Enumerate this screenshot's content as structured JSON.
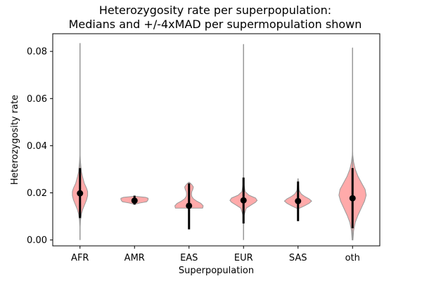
{
  "chart_data": {
    "type": "violin",
    "title": [
      "Heterozygosity rate per superpopulation:",
      "Medians and +/-4xMAD per supermopulation shown"
    ],
    "xlabel": "Superpopulation",
    "ylabel": "Heterozygosity rate",
    "categories": [
      "AFR",
      "AMR",
      "EAS",
      "EUR",
      "SAS",
      "oth"
    ],
    "ylim": [
      -0.0025,
      0.0875
    ],
    "yticks": [
      0.0,
      0.02,
      0.04,
      0.06,
      0.08
    ],
    "ytick_labels": [
      "0.00",
      "0.02",
      "0.04",
      "0.06",
      "0.08"
    ],
    "violin_color": "#ffaaaa",
    "violin_edge_color": "#999999",
    "range_line_color": "#999999",
    "median_color": "#000000",
    "groups": [
      {
        "name": "AFR",
        "min": 0.0,
        "max": 0.0835,
        "median": 0.0198,
        "mad_low": 0.0093,
        "mad_high": 0.0305,
        "density": [
          [
            0.005,
            0.002
          ],
          [
            0.0085,
            0.01
          ],
          [
            0.011,
            0.025
          ],
          [
            0.013,
            0.05
          ],
          [
            0.015,
            0.085
          ],
          [
            0.017,
            0.12
          ],
          [
            0.0188,
            0.14
          ],
          [
            0.0205,
            0.14
          ],
          [
            0.022,
            0.12
          ],
          [
            0.024,
            0.08
          ],
          [
            0.0265,
            0.05
          ],
          [
            0.029,
            0.025
          ],
          [
            0.033,
            0.01
          ],
          [
            0.036,
            0.003
          ],
          [
            0.045,
            0.001
          ],
          [
            0.083,
            0.001
          ]
        ]
      },
      {
        "name": "AMR",
        "min": 0.0152,
        "max": 0.0185,
        "median": 0.0167,
        "mad_low": 0.015,
        "mad_high": 0.0188,
        "density": [
          [
            0.0152,
            0.01
          ],
          [
            0.0157,
            0.1
          ],
          [
            0.0162,
            0.22
          ],
          [
            0.0167,
            0.24
          ],
          [
            0.0172,
            0.25
          ],
          [
            0.0177,
            0.25
          ],
          [
            0.0181,
            0.2
          ],
          [
            0.0185,
            0.02
          ]
        ]
      },
      {
        "name": "EAS",
        "min": 0.0135,
        "max": 0.0245,
        "median": 0.0145,
        "mad_low": 0.0045,
        "mad_high": 0.024,
        "density": [
          [
            0.0135,
            0.25
          ],
          [
            0.0145,
            0.26
          ],
          [
            0.0155,
            0.22
          ],
          [
            0.0165,
            0.14
          ],
          [
            0.0175,
            0.08
          ],
          [
            0.0185,
            0.05
          ],
          [
            0.0195,
            0.045
          ],
          [
            0.0205,
            0.05
          ],
          [
            0.0215,
            0.07
          ],
          [
            0.0225,
            0.08
          ],
          [
            0.0235,
            0.05
          ],
          [
            0.0245,
            0.005
          ]
        ]
      },
      {
        "name": "EUR",
        "min": 0.0,
        "max": 0.083,
        "median": 0.0168,
        "mad_low": 0.007,
        "mad_high": 0.0265,
        "density": [
          [
            0.01,
            0.002
          ],
          [
            0.0135,
            0.05
          ],
          [
            0.015,
            0.15
          ],
          [
            0.016,
            0.22
          ],
          [
            0.0168,
            0.25
          ],
          [
            0.0178,
            0.22
          ],
          [
            0.019,
            0.1
          ],
          [
            0.0205,
            0.03
          ],
          [
            0.024,
            0.005
          ],
          [
            0.03,
            0.001
          ],
          [
            0.083,
            0.001
          ]
        ]
      },
      {
        "name": "SAS",
        "min": 0.0135,
        "max": 0.026,
        "median": 0.0165,
        "mad_low": 0.008,
        "mad_high": 0.0248,
        "density": [
          [
            0.0135,
            0.03
          ],
          [
            0.0145,
            0.12
          ],
          [
            0.0155,
            0.2
          ],
          [
            0.0165,
            0.25
          ],
          [
            0.0175,
            0.2
          ],
          [
            0.0185,
            0.12
          ],
          [
            0.0195,
            0.06
          ],
          [
            0.021,
            0.02
          ],
          [
            0.0235,
            0.01
          ],
          [
            0.026,
            0.003
          ]
        ]
      },
      {
        "name": "oth",
        "min": 0.0,
        "max": 0.0815,
        "median": 0.0177,
        "mad_low": 0.005,
        "mad_high": 0.0305,
        "density": [
          [
            0.0,
            0.008
          ],
          [
            0.004,
            0.02
          ],
          [
            0.0075,
            0.05
          ],
          [
            0.0105,
            0.1
          ],
          [
            0.0135,
            0.16
          ],
          [
            0.0165,
            0.22
          ],
          [
            0.019,
            0.25
          ],
          [
            0.0215,
            0.23
          ],
          [
            0.024,
            0.17
          ],
          [
            0.027,
            0.1
          ],
          [
            0.03,
            0.05
          ],
          [
            0.033,
            0.02
          ],
          [
            0.036,
            0.005
          ],
          [
            0.04,
            0.001
          ],
          [
            0.0815,
            0.001
          ]
        ]
      }
    ]
  }
}
